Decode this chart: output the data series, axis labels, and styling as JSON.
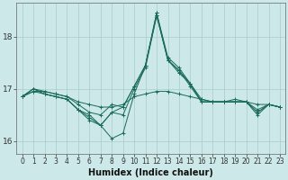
{
  "xlabel": "Humidex (Indice chaleur)",
  "background_color": "#cce8e8",
  "grid_color": "#aacccc",
  "line_color": "#1a6b5a",
  "x_values": [
    0,
    1,
    2,
    3,
    4,
    5,
    6,
    7,
    8,
    9,
    10,
    11,
    12,
    13,
    14,
    15,
    16,
    17,
    18,
    19,
    20,
    21,
    22,
    23
  ],
  "series": [
    [
      16.85,
      16.95,
      16.95,
      16.9,
      16.85,
      16.75,
      16.7,
      16.65,
      16.65,
      16.7,
      16.85,
      16.9,
      16.95,
      16.95,
      16.9,
      16.85,
      16.8,
      16.75,
      16.75,
      16.75,
      16.75,
      16.7,
      16.7,
      16.65
    ],
    [
      16.85,
      17.0,
      16.95,
      16.9,
      16.85,
      16.7,
      16.55,
      16.5,
      16.7,
      16.65,
      17.05,
      17.45,
      18.45,
      17.6,
      17.4,
      17.1,
      16.75,
      16.75,
      16.75,
      16.75,
      16.75,
      16.6,
      16.7,
      16.65
    ],
    [
      16.85,
      17.0,
      16.9,
      16.85,
      16.8,
      16.6,
      16.4,
      16.3,
      16.05,
      16.15,
      16.9,
      17.45,
      18.45,
      17.55,
      17.35,
      17.05,
      16.75,
      16.75,
      16.75,
      16.75,
      16.75,
      16.5,
      16.7,
      16.65
    ],
    [
      16.85,
      16.95,
      16.9,
      16.85,
      16.8,
      16.6,
      16.45,
      16.3,
      16.55,
      16.5,
      17.0,
      17.4,
      18.4,
      17.55,
      17.35,
      17.1,
      16.8,
      16.75,
      16.75,
      16.8,
      16.75,
      16.55,
      16.7,
      16.65
    ],
    [
      16.85,
      17.0,
      16.9,
      16.85,
      16.8,
      16.6,
      16.5,
      16.3,
      16.55,
      16.65,
      17.05,
      17.45,
      18.4,
      17.55,
      17.3,
      17.1,
      16.75,
      16.75,
      16.75,
      16.75,
      16.75,
      16.55,
      16.7,
      16.65
    ]
  ],
  "ylim": [
    15.75,
    18.65
  ],
  "yticks": [
    16,
    17,
    18
  ],
  "xtick_labels": [
    "0",
    "1",
    "2",
    "3",
    "4",
    "5",
    "6",
    "7",
    "8",
    "9",
    "10",
    "11",
    "12",
    "13",
    "14",
    "15",
    "16",
    "17",
    "18",
    "19",
    "20",
    "21",
    "22",
    "23"
  ],
  "marker": "+",
  "markersize": 3.5,
  "linewidth": 0.7,
  "xlabel_fontsize": 7,
  "tick_fontsize": 5.5,
  "ytick_fontsize": 6.5
}
